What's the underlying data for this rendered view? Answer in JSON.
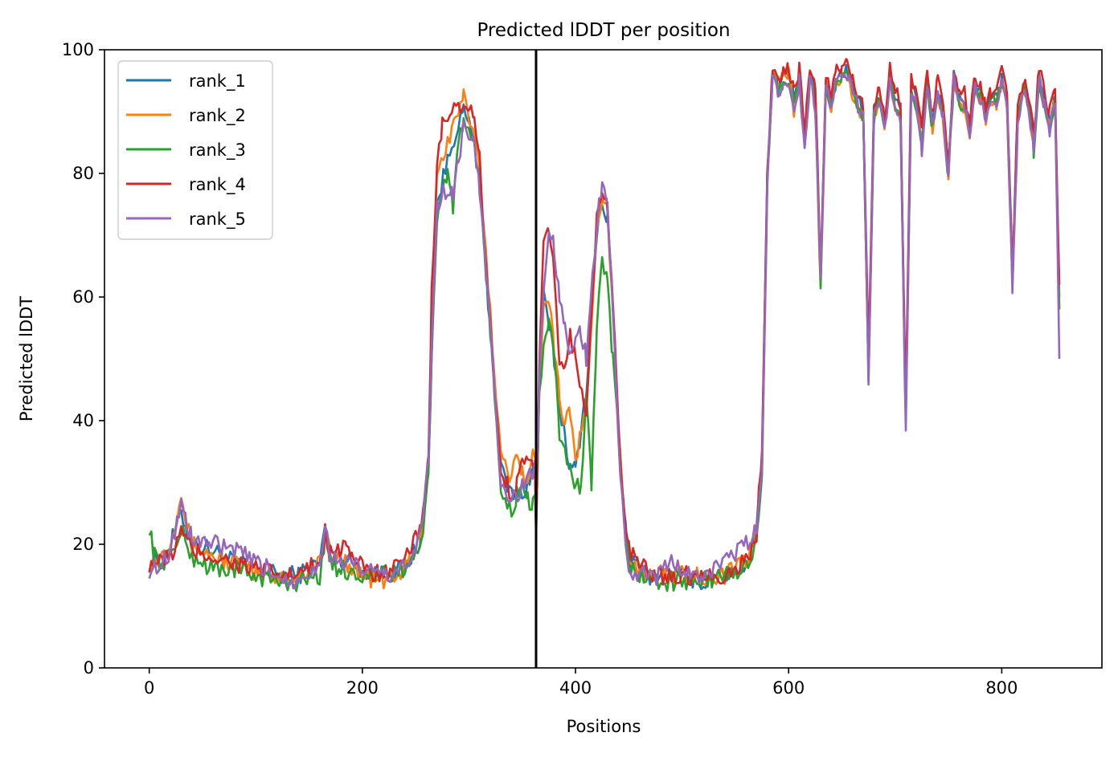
{
  "chart_data": {
    "type": "line",
    "title": "Predicted lDDT per position",
    "xlabel": "Positions",
    "ylabel": "Predicted lDDT",
    "xlim": [
      -42,
      894
    ],
    "ylim": [
      0,
      100
    ],
    "xticks": [
      0,
      200,
      400,
      600,
      800
    ],
    "yticks": [
      0,
      20,
      40,
      60,
      80,
      100
    ],
    "grid": false,
    "legend_position": "top-left",
    "vline_x": 363,
    "vline_color": "#000000",
    "series": [
      {
        "name": "rank_1",
        "color": "#1f77b4",
        "offset": 0,
        "x": [
          0,
          10,
          20,
          30,
          40,
          60,
          80,
          100,
          120,
          140,
          160,
          165,
          170,
          180,
          200,
          220,
          240,
          255,
          262,
          265,
          270,
          280,
          290,
          295,
          300,
          305,
          310,
          320,
          330,
          340,
          350,
          355,
          360,
          362,
          363,
          366,
          370,
          375,
          380,
          385,
          390,
          395,
          400,
          410,
          420,
          425,
          430,
          435,
          440,
          445,
          450,
          460,
          470,
          480,
          500,
          520,
          540,
          560,
          570,
          575,
          580,
          585,
          590,
          595,
          600,
          605,
          610,
          615,
          620,
          625,
          630,
          635,
          640,
          645,
          650,
          655,
          660,
          665,
          670,
          675,
          680,
          685,
          690,
          695,
          700,
          705,
          710,
          715,
          720,
          725,
          730,
          735,
          740,
          745,
          750,
          755,
          760,
          765,
          770,
          775,
          780,
          785,
          790,
          795,
          800,
          805,
          810,
          815,
          820,
          825,
          830,
          835,
          840,
          845,
          850,
          854
        ],
        "y": [
          17,
          17,
          20,
          25,
          20,
          19,
          17,
          16,
          15,
          15,
          17,
          23,
          18,
          18,
          16,
          15,
          16,
          21,
          32,
          50,
          75,
          82,
          88,
          90,
          88,
          85,
          78,
          55,
          32,
          28,
          28,
          30,
          32,
          31,
          22,
          45,
          60,
          55,
          50,
          42,
          38,
          32,
          32,
          45,
          70,
          75,
          72,
          60,
          40,
          25,
          18,
          16,
          15,
          15,
          15,
          14,
          15,
          17,
          22,
          35,
          80,
          96,
          94,
          96,
          96,
          92,
          96,
          85,
          96,
          93,
          63,
          95,
          92,
          96,
          96,
          97,
          94,
          92,
          90,
          48,
          90,
          93,
          88,
          96,
          92,
          90,
          40,
          95,
          92,
          85,
          96,
          88,
          94,
          90,
          80,
          96,
          92,
          92,
          87,
          95,
          93,
          90,
          92,
          92,
          96,
          91,
          63,
          90,
          94,
          92,
          85,
          96,
          92,
          88,
          93,
          60
        ]
      },
      {
        "name": "rank_2",
        "color": "#ff7f0e",
        "offset": 0.8,
        "x": [
          0,
          10,
          20,
          30,
          35,
          40,
          60,
          80,
          100,
          120,
          140,
          160,
          165,
          170,
          180,
          200,
          220,
          240,
          255,
          262,
          265,
          270,
          280,
          290,
          295,
          300,
          305,
          310,
          320,
          330,
          340,
          345,
          350,
          355,
          360,
          362,
          363,
          366,
          370,
          375,
          380,
          385,
          390,
          395,
          400,
          410,
          420,
          425,
          430,
          435,
          440,
          445,
          450,
          460,
          470,
          480,
          500,
          520,
          540,
          560,
          570,
          575,
          580,
          585,
          590,
          595,
          600,
          605,
          610,
          615,
          620,
          625,
          630,
          635,
          640,
          645,
          650,
          655,
          660,
          665,
          670,
          675,
          680,
          685,
          690,
          695,
          700,
          705,
          710,
          715,
          720,
          725,
          730,
          735,
          740,
          745,
          750,
          755,
          760,
          765,
          770,
          775,
          780,
          785,
          790,
          795,
          800,
          805,
          810,
          815,
          820,
          825,
          830,
          835,
          840,
          845,
          850,
          854
        ],
        "y": [
          17,
          18,
          20,
          29,
          23,
          20,
          18,
          17,
          15,
          15,
          15,
          17,
          22,
          18,
          18,
          15,
          14,
          16,
          21,
          33,
          55,
          80,
          85,
          90,
          93,
          88,
          86,
          80,
          58,
          34,
          30,
          36,
          32,
          30,
          34,
          33,
          22,
          45,
          60,
          60,
          52,
          44,
          40,
          42,
          33,
          42,
          70,
          75,
          74,
          58,
          40,
          25,
          18,
          16,
          15,
          15,
          15,
          15,
          15,
          17,
          22,
          35,
          80,
          96,
          94,
          96,
          96,
          90,
          95,
          84,
          95,
          92,
          61,
          94,
          91,
          95,
          95,
          96,
          93,
          91,
          89,
          47,
          89,
          92,
          87,
          95,
          91,
          89,
          40,
          94,
          91,
          84,
          95,
          87,
          93,
          89,
          80,
          95,
          91,
          91,
          86,
          94,
          92,
          89,
          91,
          91,
          95,
          90,
          62,
          89,
          93,
          91,
          84,
          95,
          91,
          87,
          92,
          58
        ]
      },
      {
        "name": "rank_3",
        "color": "#2ca02c",
        "offset": 1.6,
        "x": [
          0,
          5,
          10,
          20,
          30,
          40,
          60,
          80,
          100,
          120,
          140,
          160,
          165,
          170,
          180,
          200,
          220,
          240,
          255,
          262,
          265,
          270,
          275,
          280,
          285,
          290,
          295,
          300,
          305,
          310,
          320,
          330,
          340,
          345,
          350,
          355,
          360,
          362,
          363,
          366,
          370,
          375,
          380,
          385,
          390,
          395,
          400,
          405,
          410,
          415,
          420,
          425,
          430,
          435,
          440,
          445,
          450,
          460,
          470,
          480,
          500,
          520,
          540,
          560,
          570,
          575,
          580,
          585,
          590,
          595,
          600,
          605,
          610,
          615,
          620,
          625,
          630,
          635,
          640,
          645,
          650,
          655,
          660,
          665,
          670,
          675,
          680,
          685,
          690,
          695,
          700,
          705,
          710,
          715,
          720,
          725,
          730,
          735,
          740,
          745,
          750,
          755,
          760,
          765,
          770,
          775,
          780,
          785,
          790,
          795,
          800,
          805,
          810,
          815,
          820,
          825,
          830,
          835,
          840,
          845,
          850,
          854
        ],
        "y": [
          23,
          18,
          17,
          18,
          22,
          18,
          16,
          16,
          15,
          14,
          14,
          15,
          21,
          17,
          16,
          15,
          15,
          16,
          20,
          30,
          50,
          72,
          78,
          80,
          75,
          85,
          88,
          86,
          84,
          78,
          55,
          28,
          25,
          28,
          30,
          27,
          26,
          28,
          22,
          45,
          52,
          56,
          50,
          38,
          35,
          32,
          30,
          28,
          45,
          30,
          55,
          65,
          62,
          50,
          38,
          24,
          17,
          15,
          14,
          14,
          14,
          14,
          15,
          16,
          21,
          32,
          78,
          96,
          93,
          95,
          95,
          91,
          95,
          84,
          95,
          92,
          62,
          94,
          91,
          95,
          95,
          96,
          93,
          91,
          89,
          47,
          89,
          92,
          87,
          96,
          91,
          89,
          39,
          94,
          91,
          84,
          95,
          87,
          94,
          89,
          79,
          95,
          91,
          91,
          86,
          94,
          93,
          90,
          92,
          92,
          95,
          90,
          62,
          89,
          94,
          91,
          84,
          95,
          91,
          87,
          92,
          58
        ]
      },
      {
        "name": "rank_4",
        "color": "#d62728",
        "offset": 2.4,
        "x": [
          0,
          10,
          20,
          30,
          40,
          60,
          80,
          100,
          120,
          140,
          160,
          165,
          170,
          175,
          180,
          185,
          190,
          200,
          220,
          240,
          255,
          262,
          265,
          270,
          275,
          280,
          290,
          295,
          300,
          305,
          310,
          320,
          330,
          340,
          345,
          350,
          355,
          360,
          362,
          363,
          366,
          370,
          375,
          380,
          385,
          390,
          395,
          400,
          410,
          420,
          425,
          430,
          435,
          440,
          445,
          450,
          460,
          470,
          480,
          500,
          520,
          540,
          560,
          570,
          575,
          580,
          585,
          590,
          595,
          600,
          605,
          610,
          615,
          620,
          625,
          630,
          635,
          640,
          645,
          650,
          655,
          660,
          665,
          670,
          675,
          680,
          685,
          690,
          695,
          700,
          705,
          710,
          715,
          720,
          725,
          730,
          735,
          740,
          745,
          750,
          755,
          760,
          765,
          770,
          775,
          780,
          785,
          790,
          795,
          800,
          805,
          810,
          815,
          820,
          825,
          830,
          835,
          840,
          845,
          850,
          854
        ],
        "y": [
          17,
          17,
          18,
          22,
          19,
          18,
          17,
          16,
          15,
          15,
          17,
          22,
          19,
          20,
          19,
          21,
          18,
          16,
          15,
          17,
          23,
          35,
          60,
          80,
          88,
          89,
          91,
          90,
          91,
          88,
          82,
          55,
          32,
          28,
          30,
          33,
          35,
          32,
          33,
          22,
          48,
          68,
          70,
          64,
          50,
          48,
          54,
          50,
          42,
          72,
          78,
          74,
          60,
          40,
          26,
          19,
          17,
          15,
          15,
          15,
          15,
          15,
          17,
          22,
          36,
          81,
          97,
          95,
          97,
          97,
          93,
          97,
          87,
          97,
          94,
          64,
          96,
          93,
          97,
          97,
          98,
          95,
          93,
          91,
          50,
          91,
          95,
          89,
          97,
          94,
          91,
          42,
          96,
          93,
          87,
          97,
          89,
          96,
          92,
          82,
          97,
          93,
          93,
          88,
          96,
          94,
          91,
          93,
          93,
          97,
          92,
          64,
          91,
          95,
          93,
          86,
          97,
          93,
          90,
          94,
          62
        ]
      },
      {
        "name": "rank_5",
        "color": "#9467bd",
        "offset": 3.2,
        "x": [
          0,
          5,
          10,
          20,
          30,
          35,
          40,
          60,
          80,
          100,
          120,
          135,
          140,
          160,
          165,
          170,
          180,
          200,
          220,
          240,
          255,
          262,
          265,
          270,
          280,
          285,
          290,
          295,
          300,
          305,
          310,
          320,
          330,
          340,
          350,
          355,
          360,
          362,
          363,
          366,
          370,
          375,
          380,
          385,
          390,
          395,
          400,
          405,
          410,
          420,
          425,
          430,
          435,
          440,
          445,
          450,
          460,
          470,
          480,
          490,
          500,
          520,
          540,
          560,
          570,
          575,
          580,
          585,
          590,
          595,
          600,
          605,
          610,
          615,
          620,
          625,
          630,
          635,
          640,
          645,
          650,
          655,
          660,
          665,
          670,
          675,
          680,
          685,
          690,
          695,
          700,
          705,
          710,
          715,
          720,
          725,
          730,
          735,
          740,
          745,
          750,
          755,
          760,
          765,
          770,
          775,
          780,
          785,
          790,
          795,
          800,
          805,
          810,
          815,
          820,
          825,
          830,
          835,
          840,
          845,
          850,
          854
        ],
        "y": [
          16,
          16,
          17,
          19,
          27,
          23,
          21,
          20,
          19,
          17,
          15,
          14,
          15,
          16,
          24,
          18,
          17,
          16,
          15,
          16,
          22,
          33,
          52,
          75,
          78,
          76,
          82,
          88,
          86,
          84,
          78,
          55,
          30,
          27,
          29,
          32,
          31,
          33,
          31,
          45,
          62,
          70,
          68,
          60,
          55,
          50,
          52,
          55,
          50,
          72,
          78,
          75,
          58,
          38,
          24,
          16,
          15,
          15,
          15,
          18,
          15,
          15,
          17,
          20,
          22,
          33,
          78,
          96,
          93,
          95,
          95,
          90,
          95,
          83,
          95,
          91,
          62,
          94,
          91,
          95,
          95,
          96,
          93,
          91,
          89,
          46,
          89,
          92,
          87,
          95,
          91,
          88,
          38,
          94,
          91,
          83,
          95,
          87,
          93,
          89,
          80,
          95,
          91,
          91,
          86,
          94,
          92,
          89,
          91,
          91,
          95,
          90,
          61,
          88,
          93,
          91,
          84,
          95,
          91,
          87,
          92,
          50
        ]
      }
    ]
  }
}
